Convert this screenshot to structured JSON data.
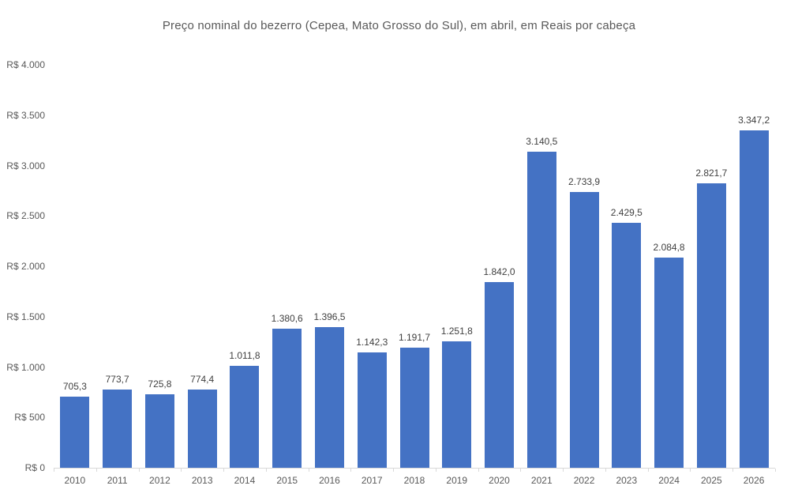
{
  "chart_data": {
    "type": "bar",
    "title": "Preço nominal do bezerro (Cepea, Mato Grosso do Sul), em abril, em Reais por cabeça",
    "categories": [
      "2010",
      "2011",
      "2012",
      "2013",
      "2014",
      "2015",
      "2016",
      "2017",
      "2018",
      "2019",
      "2020",
      "2021",
      "2022",
      "2023",
      "2024",
      "2025",
      "2026"
    ],
    "values": [
      705.3,
      773.7,
      725.8,
      774.4,
      1011.8,
      1380.6,
      1396.5,
      1142.3,
      1191.7,
      1251.8,
      1842.0,
      3140.5,
      2733.9,
      2429.5,
      2084.8,
      2821.7,
      3347.2
    ],
    "value_labels": [
      "705,3",
      "773,7",
      "725,8",
      "774,4",
      "1.011,8",
      "1.380,6",
      "1.396,5",
      "1.142,3",
      "1.191,7",
      "1.251,8",
      "1.842,0",
      "3.140,5",
      "2.733,9",
      "2.429,5",
      "2.084,8",
      "2.821,7",
      "3.347,2"
    ],
    "xlabel": "",
    "ylabel": "",
    "ylim": [
      0,
      4000
    ],
    "y_tick_values": [
      0,
      500,
      1000,
      1500,
      2000,
      2500,
      3000,
      3500,
      4000
    ],
    "y_tick_labels": [
      "R$ 0",
      "R$ 500",
      "R$ 1.000",
      "R$ 1.500",
      "R$ 2.000",
      "R$ 2.500",
      "R$ 3.000",
      "R$ 3.500",
      "R$ 4.000"
    ],
    "grid": false,
    "legend": "none",
    "colors": {
      "bar": "#4472c4",
      "title_text": "#595959",
      "data_label_text": "#404040",
      "axis_label_text": "#595959",
      "axis_line": "#d9d9d9"
    }
  }
}
